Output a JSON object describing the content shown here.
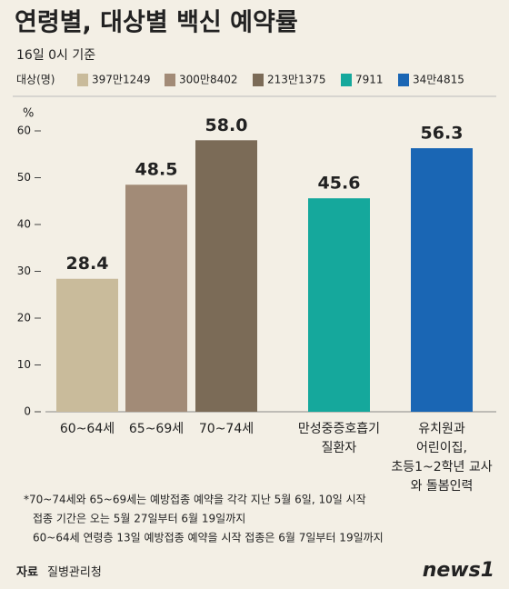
{
  "chart_data": {
    "type": "bar",
    "title": "연령별, 대상별 백신 예약률",
    "subtitle": "16일 0시 기준",
    "legend_title": "대상(명)",
    "y_unit": "%",
    "categories": [
      [
        "60~64세"
      ],
      [
        "65~69세"
      ],
      [
        "70~74세"
      ],
      [
        "만성중증호흡기",
        "질환자"
      ],
      [
        "유치원과",
        "어린이집,",
        "초등1~2학년 교사",
        "와 돌봄인력"
      ]
    ],
    "series": [
      {
        "name": "397만1249",
        "color": "#c9bb9b",
        "values": [
          28.4,
          null,
          null,
          null,
          null
        ]
      },
      {
        "name": "300만8402",
        "color": "#a28b77",
        "values": [
          null,
          48.5,
          null,
          null,
          null
        ]
      },
      {
        "name": "213만1375",
        "color": "#7b6b57",
        "values": [
          null,
          null,
          58,
          null,
          null
        ],
        "value_labels": [
          null,
          null,
          "58.0",
          null,
          null
        ]
      },
      {
        "name": "7911",
        "color": "#15a89c",
        "values": [
          null,
          null,
          null,
          45.6,
          null
        ]
      },
      {
        "name": "34만4815",
        "color": "#1a66b4",
        "values": [
          null,
          null,
          null,
          null,
          56.3
        ]
      }
    ],
    "ylim": [
      0,
      60
    ],
    "yticks": [
      0,
      10,
      20,
      30,
      40,
      50,
      60
    ],
    "grid": false,
    "notes": [
      "*70~74세와 65~69세는 예방접종 예약을 각각 지난 5월 6일, 10일 시작",
      "접종 기간은 오는 5월 27일부터 6월 19일까지",
      "60~64세 연령층  13일 예방접종 예약을 시작 접종은 6월  7일부터 19일까지"
    ],
    "source_label": "자료",
    "source": "질병관리청",
    "logo": "news1"
  }
}
